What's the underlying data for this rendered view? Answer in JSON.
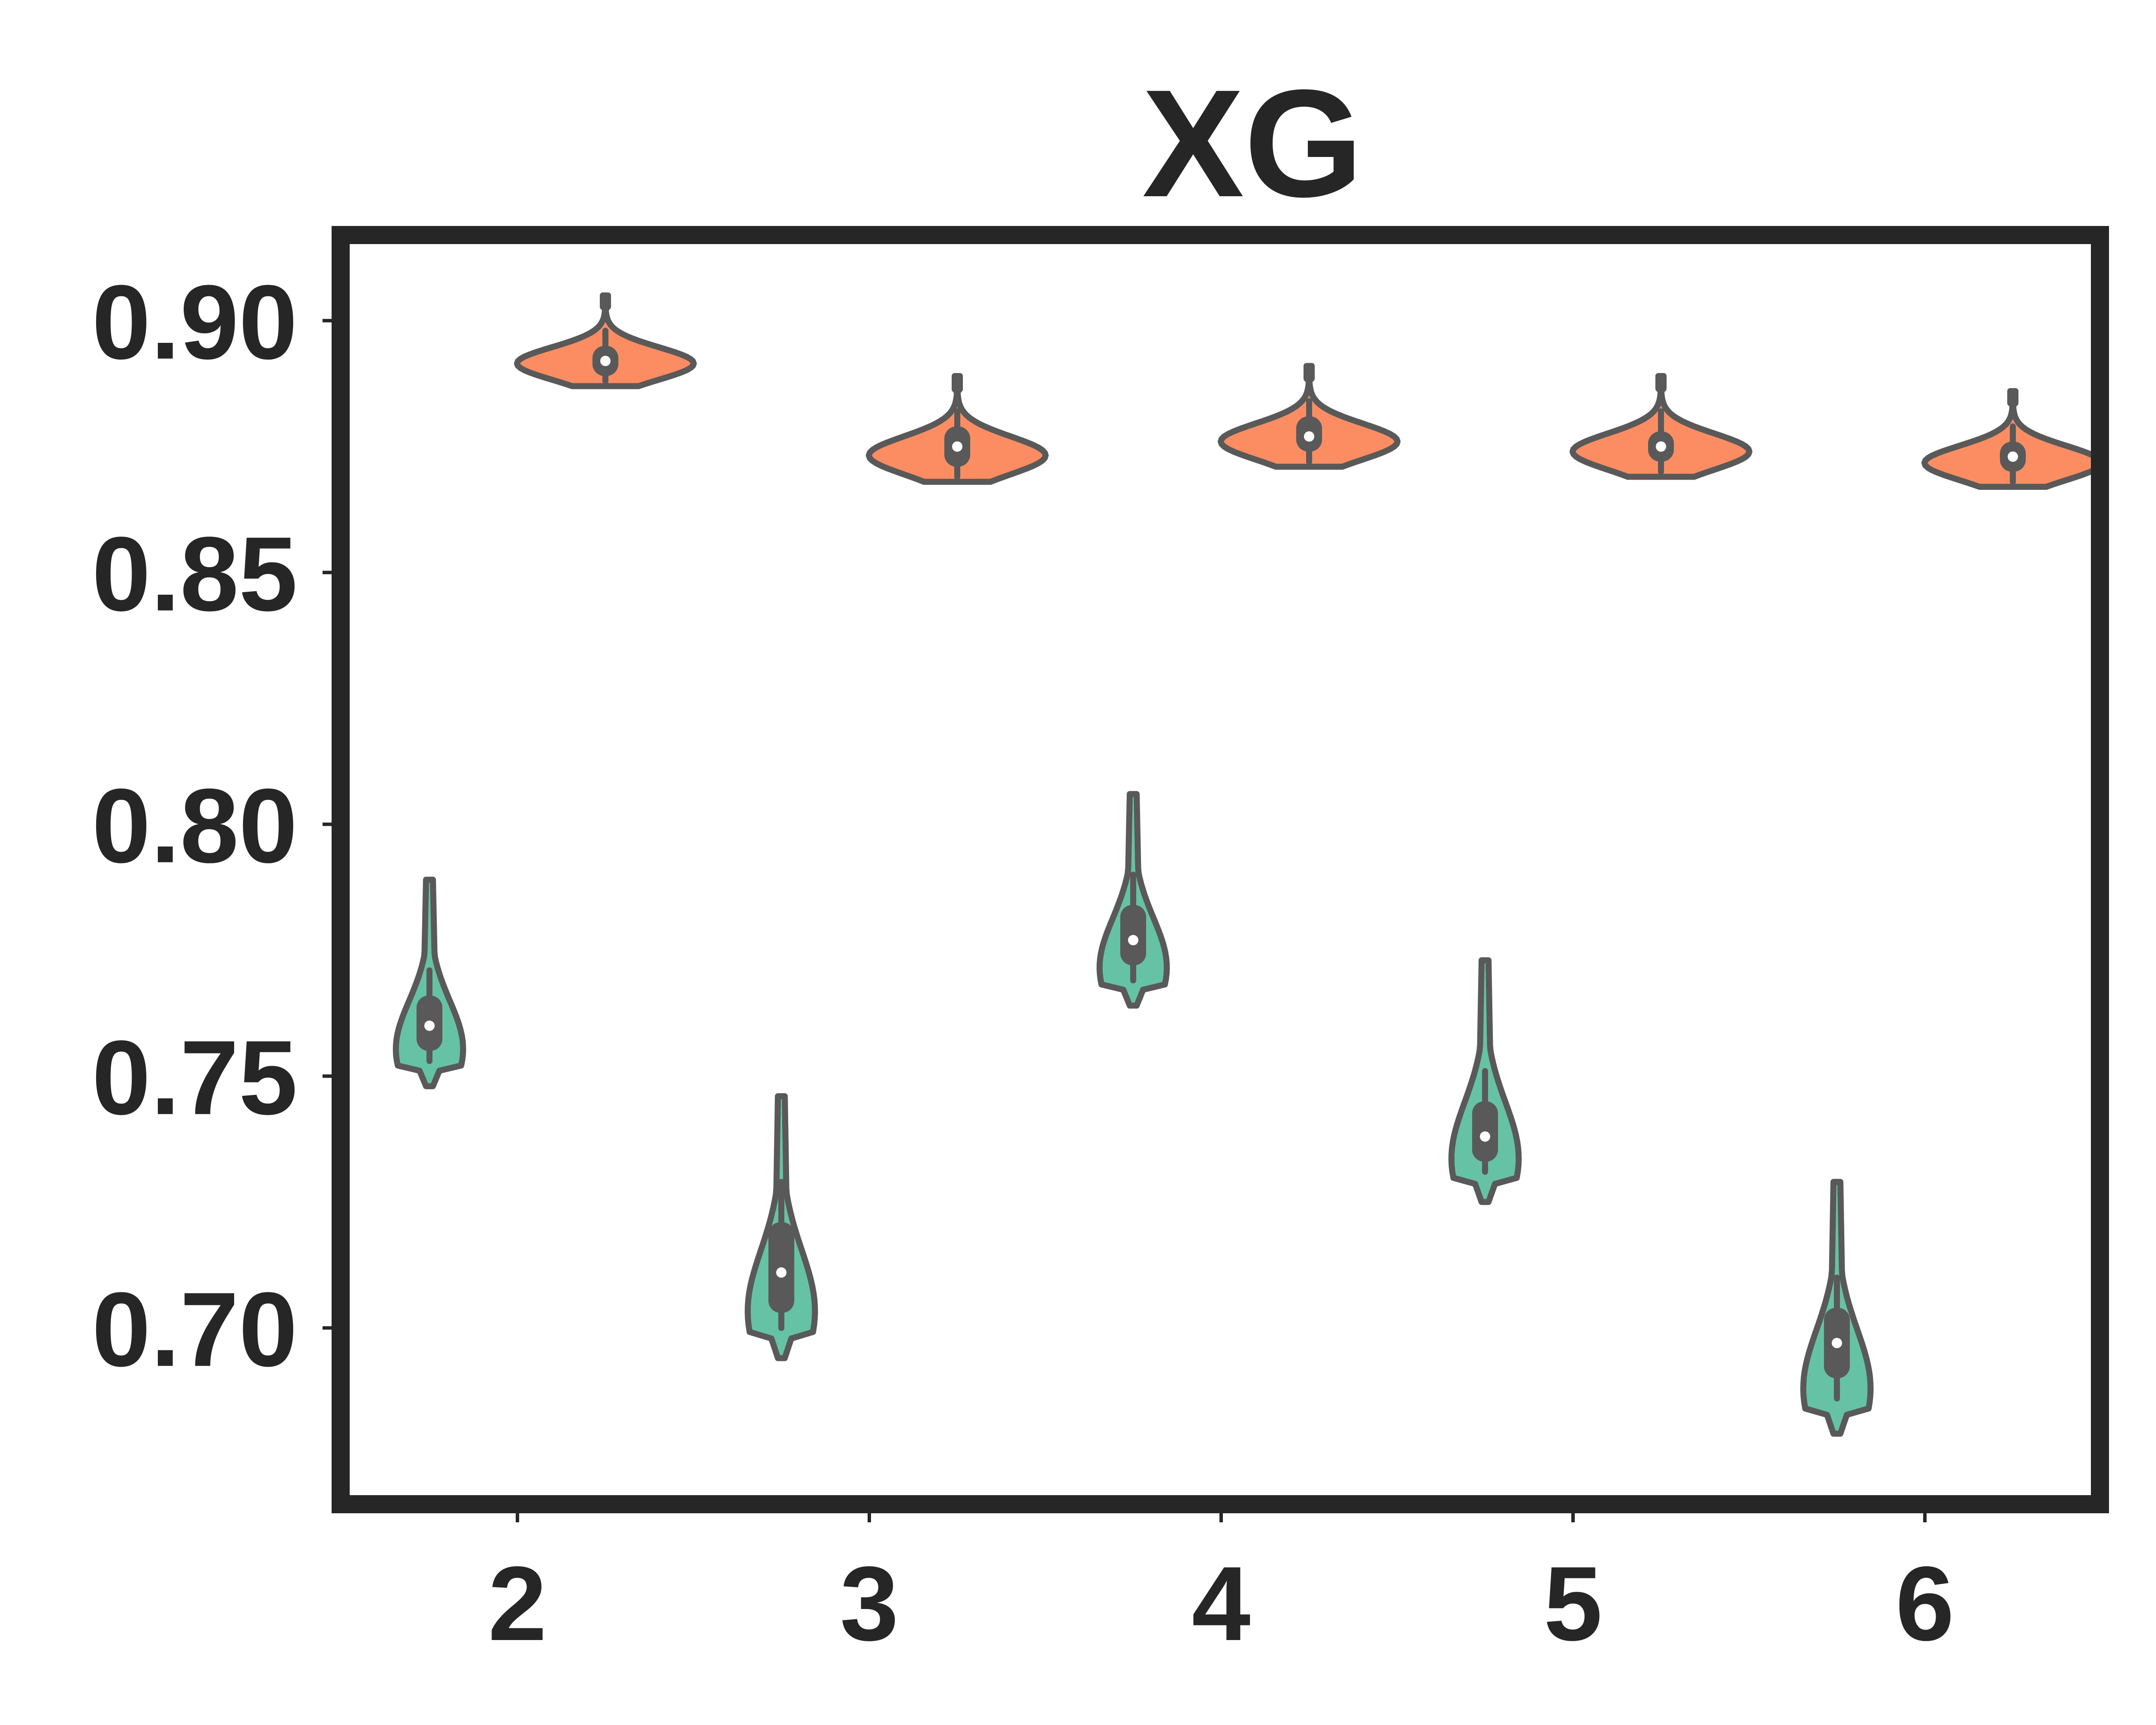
{
  "chart_data": {
    "type": "violin",
    "title": "XG",
    "xlabel": "",
    "ylabel": "",
    "categories": [
      "2",
      "3",
      "4",
      "5",
      "6"
    ],
    "yticks": [
      "0.70",
      "0.75",
      "0.80",
      "0.85",
      "0.90"
    ],
    "ylim": [
      0.665,
      0.917
    ],
    "grid": false,
    "legend": "none",
    "series": [
      {
        "color": "#66c2a5",
        "side": "left",
        "violins": [
          {
            "category": "2",
            "min": 0.748,
            "max": 0.789,
            "q1": 0.755,
            "median": 0.76,
            "q3": 0.766,
            "whisker_low": 0.753,
            "whisker_high": 0.771
          },
          {
            "category": "3",
            "min": 0.694,
            "max": 0.746,
            "q1": 0.703,
            "median": 0.711,
            "q3": 0.721,
            "whisker_low": 0.7,
            "whisker_high": 0.729
          },
          {
            "category": "4",
            "min": 0.764,
            "max": 0.806,
            "q1": 0.772,
            "median": 0.777,
            "q3": 0.784,
            "whisker_low": 0.769,
            "whisker_high": 0.79
          },
          {
            "category": "5",
            "min": 0.725,
            "max": 0.773,
            "q1": 0.733,
            "median": 0.738,
            "q3": 0.745,
            "whisker_low": 0.731,
            "whisker_high": 0.751
          },
          {
            "category": "6",
            "min": 0.679,
            "max": 0.729,
            "q1": 0.69,
            "median": 0.697,
            "q3": 0.704,
            "whisker_low": 0.686,
            "whisker_high": 0.71
          }
        ]
      },
      {
        "color": "#fc8d62",
        "side": "right",
        "violins": [
          {
            "category": "2",
            "min": 0.887,
            "max": 0.905,
            "q1": 0.889,
            "median": 0.892,
            "q3": 0.895,
            "whisker_low": 0.888,
            "whisker_high": 0.898
          },
          {
            "category": "3",
            "min": 0.868,
            "max": 0.889,
            "q1": 0.871,
            "median": 0.875,
            "q3": 0.879,
            "whisker_low": 0.869,
            "whisker_high": 0.882
          },
          {
            "category": "4",
            "min": 0.871,
            "max": 0.891,
            "q1": 0.874,
            "median": 0.877,
            "q3": 0.881,
            "whisker_low": 0.872,
            "whisker_high": 0.884
          },
          {
            "category": "5",
            "min": 0.869,
            "max": 0.889,
            "q1": 0.872,
            "median": 0.875,
            "q3": 0.878,
            "whisker_low": 0.87,
            "whisker_high": 0.882
          },
          {
            "category": "6",
            "min": 0.867,
            "max": 0.886,
            "q1": 0.87,
            "median": 0.873,
            "q3": 0.876,
            "whisker_low": 0.868,
            "whisker_high": 0.879
          }
        ]
      }
    ]
  }
}
